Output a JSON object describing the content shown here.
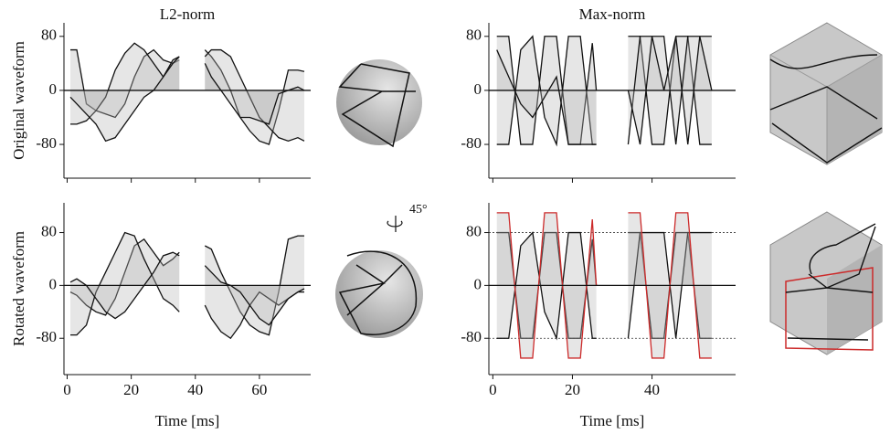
{
  "chart_data": [
    {
      "type": "line",
      "title": "L2-norm",
      "ylabel": "Original waveform",
      "x": [
        1,
        3,
        6,
        9,
        12,
        15,
        18,
        21,
        24,
        27,
        30,
        33,
        35,
        39,
        43,
        45,
        48,
        51,
        54,
        57,
        60,
        63,
        66,
        69,
        72,
        74
      ],
      "series": [
        {
          "color": "#111111",
          "values": [
            60,
            60,
            -20,
            -30,
            -35,
            -40,
            -20,
            20,
            50,
            60,
            45,
            40,
            45,
            null,
            60,
            50,
            30,
            0,
            -40,
            -60,
            -75,
            -80,
            -30,
            30,
            30,
            28
          ]
        },
        {
          "color": "#111111",
          "values": [
            -50,
            -50,
            -45,
            -30,
            -10,
            30,
            55,
            70,
            60,
            40,
            20,
            45,
            50,
            null,
            50,
            60,
            60,
            50,
            20,
            -10,
            -40,
            -55,
            -70,
            -75,
            -70,
            -75
          ]
        },
        {
          "color": "#111111",
          "values": [
            -10,
            -20,
            -35,
            -50,
            -75,
            -70,
            -50,
            -30,
            -10,
            0,
            20,
            40,
            50,
            null,
            40,
            20,
            0,
            -20,
            -40,
            -40,
            -45,
            -50,
            -5,
            0,
            5,
            0
          ]
        }
      ],
      "area_color": "#b8b8b8",
      "show_xtick_labels": false,
      "xlim": [
        -1,
        76
      ],
      "ylim": [
        -130,
        100
      ],
      "xticks": [
        0,
        20,
        40,
        60
      ],
      "yticks": [
        80,
        0,
        -80
      ]
    },
    {
      "type": "line",
      "title": "Max-norm",
      "x": [
        1,
        4,
        7,
        10,
        13,
        16,
        19,
        22,
        25,
        26,
        30,
        34,
        37,
        40,
        43,
        46,
        49,
        52,
        55
      ],
      "series": [
        {
          "color": "#111111",
          "values": [
            80,
            80,
            -80,
            -80,
            80,
            80,
            -80,
            -80,
            70,
            0,
            null,
            80,
            80,
            -80,
            -80,
            80,
            80,
            -80,
            -80
          ]
        },
        {
          "color": "#111111",
          "values": [
            -80,
            -80,
            60,
            80,
            -40,
            -80,
            80,
            80,
            -80,
            -80,
            null,
            -80,
            80,
            80,
            80,
            -80,
            80,
            80,
            80
          ]
        },
        {
          "color": "#111111",
          "values": [
            60,
            20,
            -20,
            -40,
            -10,
            20,
            -80,
            -80,
            -80,
            -80,
            null,
            0,
            -80,
            80,
            0,
            80,
            -80,
            80,
            0
          ]
        }
      ],
      "area_color": "#b8b8b8",
      "show_xtick_labels": false,
      "xlim": [
        -1,
        61
      ],
      "ylim": [
        -130,
        100
      ],
      "xticks": [
        0,
        20,
        40
      ],
      "yticks": [
        80,
        0,
        -80
      ]
    },
    {
      "type": "line",
      "ylabel": "Rotated waveform",
      "xlabel": "Time [ms]",
      "annotation": "45°",
      "x": [
        1,
        3,
        6,
        9,
        12,
        15,
        18,
        21,
        24,
        27,
        30,
        33,
        35,
        39,
        43,
        45,
        48,
        51,
        54,
        57,
        60,
        63,
        66,
        69,
        72,
        74
      ],
      "series": [
        {
          "color": "#111111",
          "values": [
            -10,
            -15,
            -30,
            -40,
            -45,
            -20,
            20,
            60,
            70,
            50,
            30,
            40,
            50,
            null,
            60,
            55,
            20,
            -10,
            -40,
            -60,
            -70,
            -75,
            -10,
            70,
            75,
            75
          ]
        },
        {
          "color": "#111111",
          "values": [
            -75,
            -75,
            -60,
            -10,
            20,
            50,
            80,
            75,
            40,
            10,
            -20,
            -30,
            -40,
            null,
            -30,
            -50,
            -70,
            -80,
            -60,
            -30,
            -10,
            -20,
            -30,
            -20,
            -10,
            -10
          ]
        },
        {
          "color": "#111111",
          "values": [
            5,
            10,
            0,
            -20,
            -40,
            -50,
            -40,
            -20,
            0,
            20,
            45,
            50,
            45,
            null,
            30,
            20,
            5,
            0,
            -10,
            -30,
            -50,
            -60,
            -40,
            -20,
            -10,
            -5
          ]
        }
      ],
      "area_color": "#b8b8b8",
      "show_xtick_labels": true,
      "xlim": [
        -1,
        76
      ],
      "ylim": [
        -135,
        125
      ],
      "xticks": [
        0,
        20,
        40,
        60
      ],
      "yticks": [
        80,
        0,
        -80
      ]
    },
    {
      "type": "line",
      "xlabel": "Time [ms]",
      "x": [
        1,
        4,
        7,
        10,
        13,
        16,
        19,
        22,
        25,
        26,
        30,
        34,
        37,
        40,
        43,
        46,
        49,
        52,
        55
      ],
      "series": [
        {
          "color": "#111111",
          "values": [
            80,
            80,
            -80,
            -80,
            80,
            80,
            -80,
            -80,
            70,
            0,
            null,
            80,
            80,
            -80,
            -80,
            80,
            80,
            -80,
            -80
          ]
        },
        {
          "color": "#111111",
          "values": [
            -80,
            -80,
            60,
            80,
            -40,
            -80,
            80,
            80,
            -80,
            -80,
            null,
            -80,
            80,
            80,
            80,
            -80,
            80,
            80,
            80
          ]
        },
        {
          "color": "#cc2a2a",
          "values": [
            110,
            110,
            -110,
            -110,
            110,
            110,
            -110,
            -110,
            100,
            0,
            null,
            110,
            110,
            -110,
            -110,
            110,
            110,
            -110,
            -110
          ]
        }
      ],
      "area_color": "#b8b8b8",
      "show_xtick_labels": true,
      "hlines": [
        80,
        -80
      ],
      "xlim": [
        -1,
        61
      ],
      "ylim": [
        -135,
        125
      ],
      "xticks": [
        0,
        20,
        40
      ],
      "yticks": [
        80,
        0,
        -80
      ]
    }
  ]
}
